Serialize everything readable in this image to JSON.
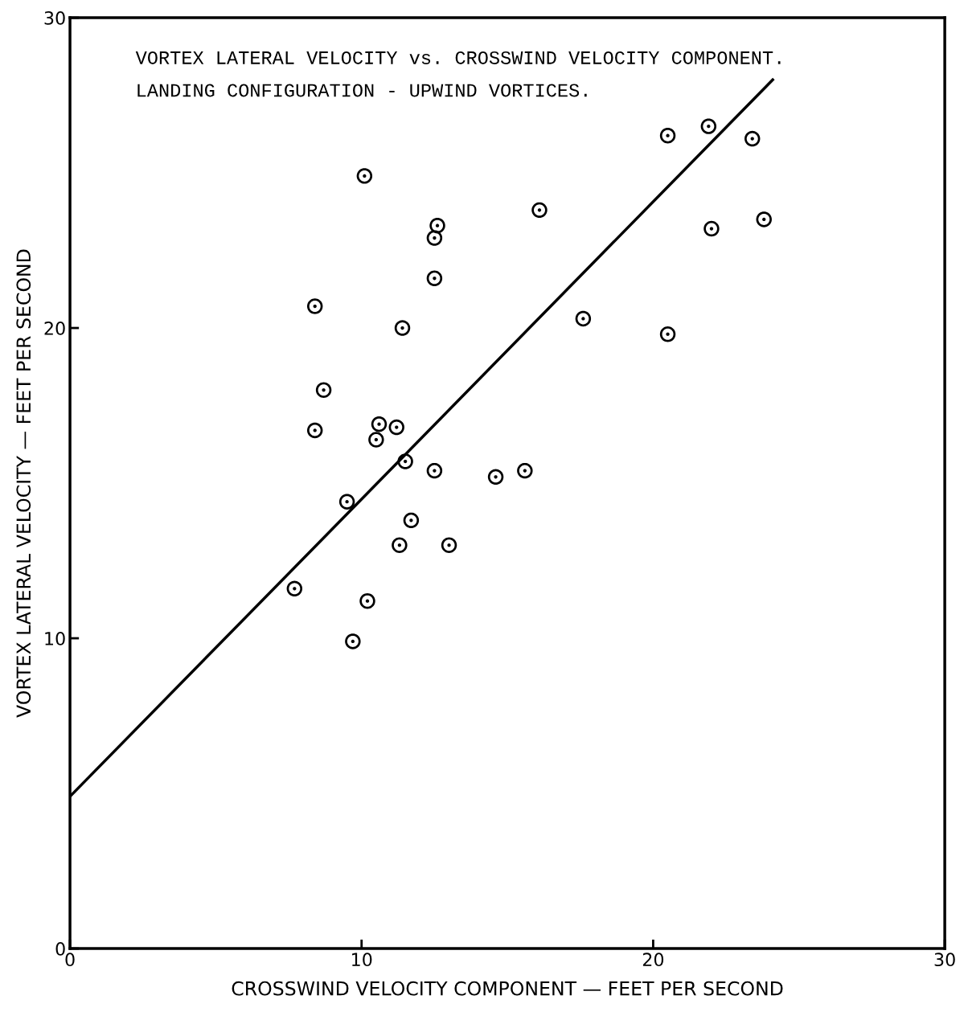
{
  "chart_data": {
    "type": "scatter",
    "title": "VORTEX LATERAL VELOCITY vs. CROSSWIND VELOCITY COMPONENT.",
    "subtitle": "LANDING CONFIGURATION - UPWIND VORTICES.",
    "xlabel": "CROSSWIND VELOCITY COMPONENT — FEET PER SECOND",
    "ylabel": "VORTEX LATERAL VELOCITY — FEET PER SECOND",
    "xlim": [
      0,
      30
    ],
    "ylim": [
      0,
      30
    ],
    "xticks": [
      0,
      10,
      20,
      30
    ],
    "yticks": [
      0,
      10,
      20,
      30
    ],
    "grid": false,
    "marker": "circle",
    "series": [
      {
        "color": "#000000",
        "x": [
          10.1,
          8.4,
          8.7,
          8.4,
          7.7,
          9.5,
          9.7,
          10.2,
          10.5,
          10.6,
          11.2,
          11.4,
          11.5,
          11.7,
          11.3,
          12.5,
          12.6,
          12.5,
          12.5,
          13.0,
          14.6,
          15.6,
          16.1,
          17.6,
          20.5,
          20.5,
          21.9,
          22.0,
          23.4,
          23.8
        ],
        "values": [
          24.9,
          20.7,
          18.0,
          16.7,
          11.6,
          14.4,
          9.9,
          11.2,
          16.4,
          16.9,
          16.8,
          20.0,
          15.7,
          13.8,
          13.0,
          22.9,
          23.3,
          21.6,
          15.4,
          13.0,
          15.2,
          15.4,
          23.8,
          20.3,
          26.2,
          19.8,
          26.5,
          23.2,
          26.1,
          23.5
        ]
      },
      {
        "type": "line",
        "color": "#000000",
        "x": [
          0,
          24.1
        ],
        "values": [
          4.9,
          28.0
        ],
        "marker": "none",
        "line_style": "solid"
      }
    ]
  }
}
